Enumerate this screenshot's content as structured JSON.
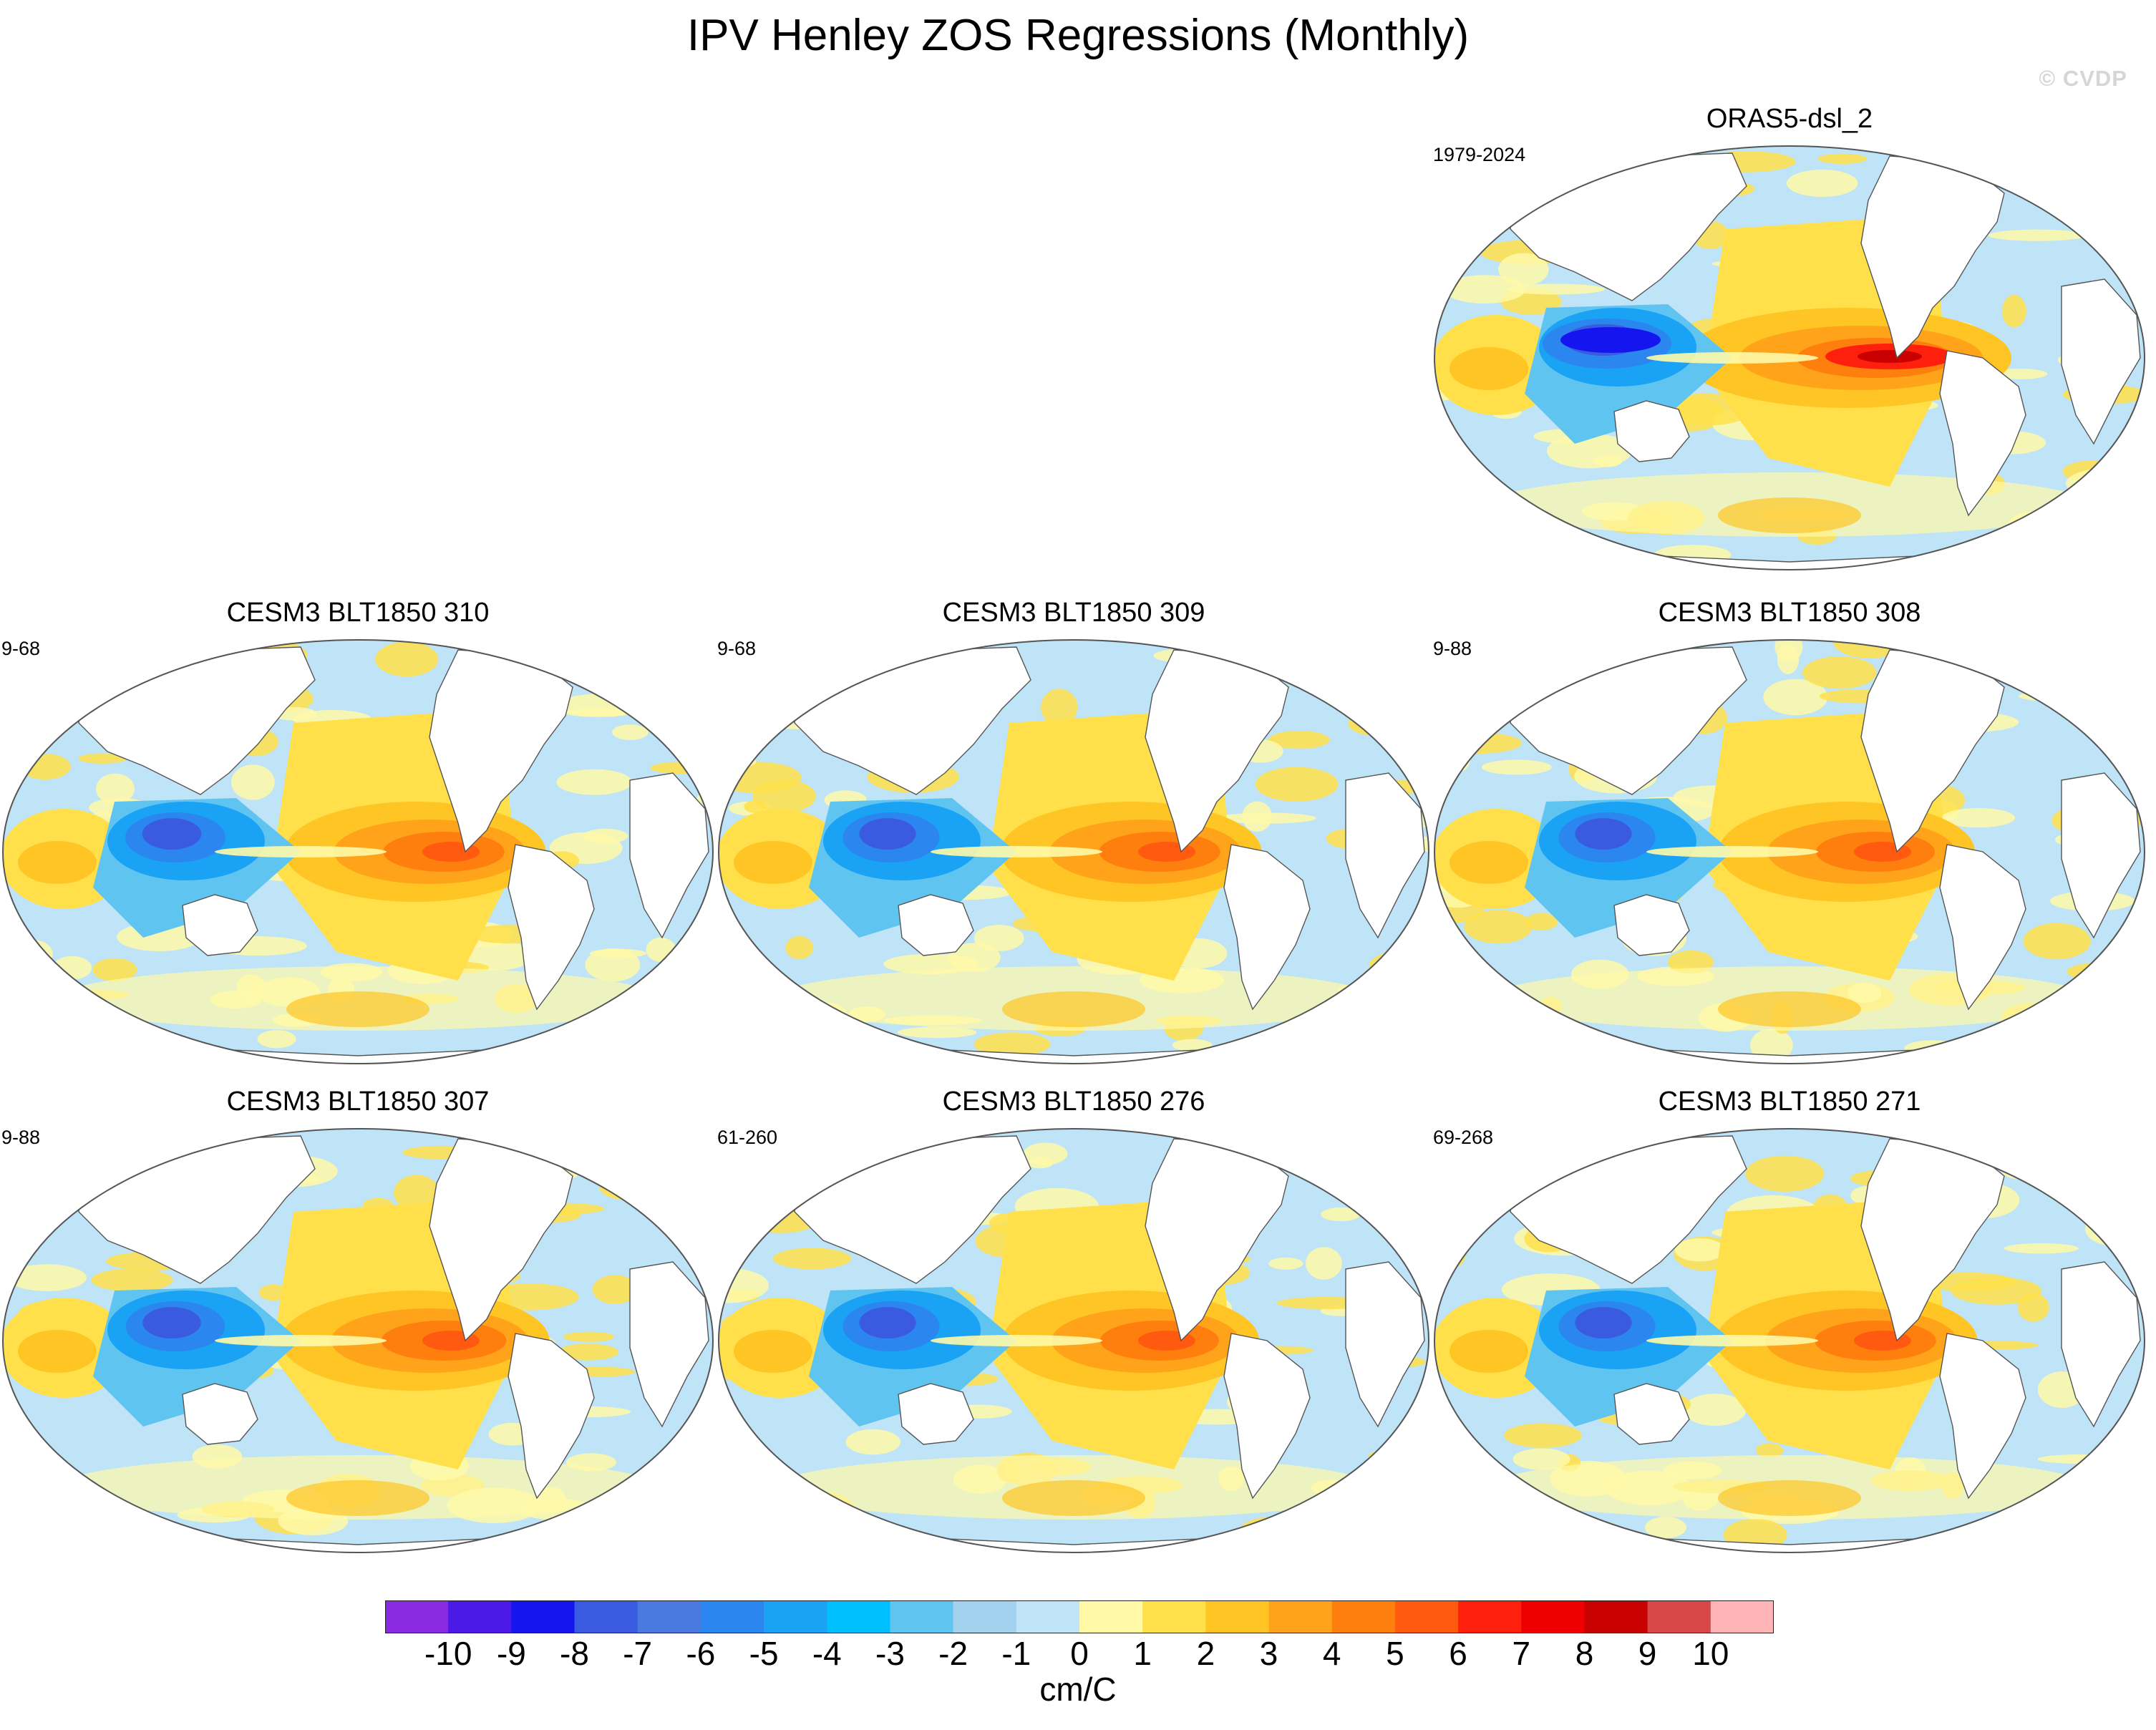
{
  "title": "IPV Henley ZOS Regressions (Monthly)",
  "watermark": "© CVDP",
  "panels": [
    {
      "title": "ORAS5-dsl_2",
      "years": "1979-2024",
      "warm_strength": 1.0,
      "cool_strength": 1.0
    },
    {
      "title": "CESM3 BLT1850 310",
      "years": "9-68",
      "warm_strength": 0.72,
      "cool_strength": 0.75
    },
    {
      "title": "CESM3 BLT1850 309",
      "years": "9-68",
      "warm_strength": 0.72,
      "cool_strength": 0.72
    },
    {
      "title": "CESM3 BLT1850 308",
      "years": "9-88",
      "warm_strength": 0.7,
      "cool_strength": 0.72
    },
    {
      "title": "CESM3 BLT1850 307",
      "years": "9-88",
      "warm_strength": 0.75,
      "cool_strength": 0.74
    },
    {
      "title": "CESM3 BLT1850 276",
      "years": "61-260",
      "warm_strength": 0.7,
      "cool_strength": 0.72
    },
    {
      "title": "CESM3 BLT1850 271",
      "years": "69-268",
      "warm_strength": 0.72,
      "cool_strength": 0.72
    }
  ],
  "colorbar": {
    "ticks": [
      "-10",
      "-9",
      "-8",
      "-7",
      "-6",
      "-5",
      "-4",
      "-3",
      "-2",
      "-1",
      "0",
      "1",
      "2",
      "3",
      "4",
      "5",
      "6",
      "7",
      "8",
      "9",
      "10"
    ],
    "colors": [
      "#8a2be2",
      "#4b1ae6",
      "#1515f0",
      "#3a5be0",
      "#4a7ae0",
      "#2b86f0",
      "#1aa2f5",
      "#00bfff",
      "#60c4f0",
      "#a3d2ee",
      "#bfe3f7",
      "#fff9a8",
      "#ffe04a",
      "#ffc524",
      "#ffa31a",
      "#ff7f0e",
      "#ff5a10",
      "#ff1f0d",
      "#ee0000",
      "#c80000",
      "#d84848",
      "#ffb5b5"
    ],
    "units": "cm/C"
  }
}
